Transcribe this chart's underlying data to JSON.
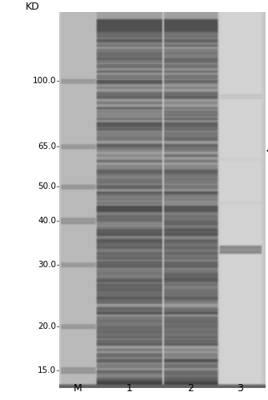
{
  "white_bg": "#ffffff",
  "kd_label": "KD",
  "lane_labels": [
    "M",
    "1",
    "2",
    "3"
  ],
  "mw_markers": [
    100.0,
    65.0,
    50.0,
    40.0,
    30.0,
    20.0,
    15.0
  ],
  "log_max": 2.176,
  "log_min": 1.146,
  "gel_bg_color": 200,
  "lane_M_color": 185,
  "lane_12_bg_color": 155,
  "lane_3_bg_color": 210,
  "prominent_band_33_color": 130,
  "faint_band_90_color": 190,
  "marker_band_color": 160,
  "arrow_mw": 33,
  "figsize": [
    3.35,
    5.0
  ],
  "dpi": 100
}
